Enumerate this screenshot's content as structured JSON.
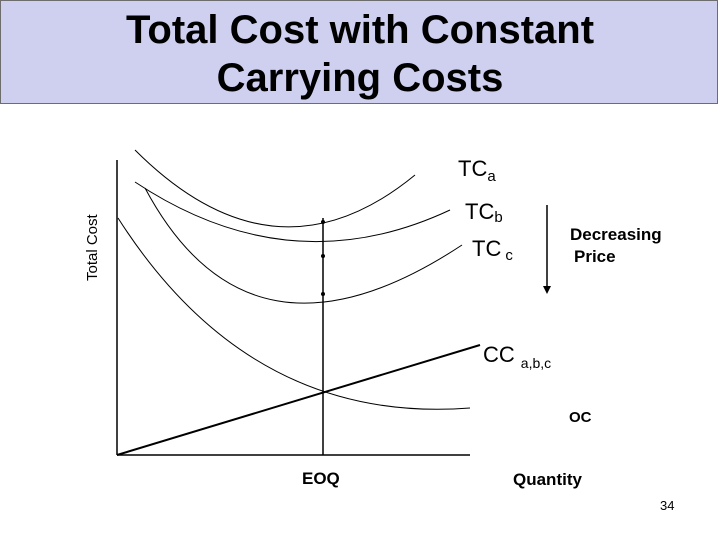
{
  "title": {
    "line1": "Total Cost with Constant",
    "line2": "Carrying Costs"
  },
  "labels": {
    "y_axis": "Total Cost",
    "x_axis": "Quantity",
    "eoq": "EOQ",
    "tc_a_main": "TC",
    "tc_a_sub": "a",
    "tc_b_main": "TC",
    "tc_b_sub": "b",
    "tc_c_main": "TC",
    "tc_c_sub": "c",
    "cc_main": "CC",
    "cc_sub": "a,b,c",
    "oc": "OC",
    "decreasing_line1": "Decreasing",
    "decreasing_line2": "Price"
  },
  "page_number": "34",
  "colors": {
    "title_background": "#cfd0f0",
    "title_border": "#6d6d6d",
    "line": "#000000"
  }
}
